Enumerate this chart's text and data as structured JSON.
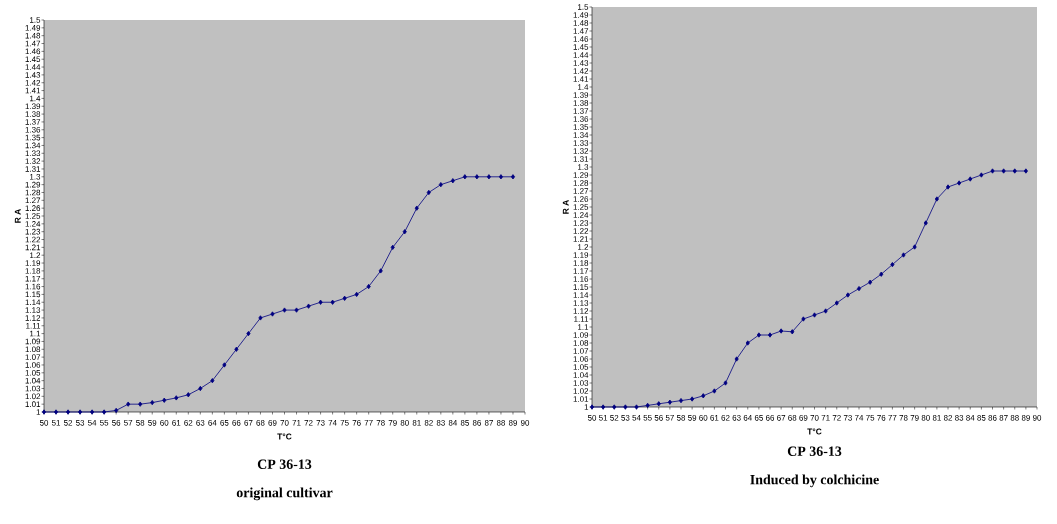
{
  "chart_data": [
    {
      "type": "line",
      "title": "CP 36-13",
      "subtitle": "original cultivar",
      "xlabel": "T°C",
      "ylabel": "R A",
      "marker": "diamond",
      "line_style": "solid",
      "x": [
        50,
        51,
        52,
        53,
        54,
        55,
        56,
        57,
        58,
        59,
        60,
        61,
        62,
        63,
        64,
        65,
        66,
        67,
        68,
        69,
        70,
        71,
        72,
        73,
        74,
        75,
        76,
        77,
        78,
        79,
        80,
        81,
        82,
        83,
        84,
        85,
        86,
        87,
        88,
        89
      ],
      "series": [
        {
          "color": "#000080",
          "values": [
            1.0,
            1.0,
            1.0,
            1.0,
            1.0,
            1.0,
            1.002,
            1.01,
            1.01,
            1.012,
            1.015,
            1.018,
            1.022,
            1.03,
            1.04,
            1.06,
            1.08,
            1.1,
            1.12,
            1.125,
            1.13,
            1.13,
            1.135,
            1.14,
            1.14,
            1.145,
            1.15,
            1.16,
            1.18,
            1.21,
            1.23,
            1.26,
            1.28,
            1.29,
            1.295,
            1.3,
            1.3,
            1.3,
            1.3,
            1.3
          ]
        }
      ],
      "xlim": [
        50,
        90
      ],
      "xticks": [
        50,
        51,
        52,
        53,
        54,
        55,
        56,
        57,
        58,
        59,
        60,
        61,
        62,
        63,
        64,
        65,
        66,
        67,
        68,
        69,
        70,
        71,
        72,
        73,
        74,
        75,
        76,
        77,
        78,
        79,
        80,
        81,
        82,
        83,
        84,
        85,
        86,
        87,
        88,
        89,
        90
      ],
      "ylim": [
        1,
        1.5
      ],
      "yticks": [
        1,
        1.01,
        1.02,
        1.03,
        1.04,
        1.05,
        1.06,
        1.07,
        1.08,
        1.09,
        1.1,
        1.11,
        1.12,
        1.13,
        1.14,
        1.15,
        1.16,
        1.17,
        1.18,
        1.19,
        1.2,
        1.21,
        1.22,
        1.23,
        1.24,
        1.25,
        1.26,
        1.27,
        1.28,
        1.29,
        1.3,
        1.31,
        1.32,
        1.33,
        1.34,
        1.35,
        1.36,
        1.37,
        1.38,
        1.39,
        1.4,
        1.41,
        1.42,
        1.43,
        1.44,
        1.45,
        1.46,
        1.47,
        1.48,
        1.49,
        1.5
      ]
    },
    {
      "type": "line",
      "title": "CP 36-13",
      "subtitle": "Induced by colchicine",
      "xlabel": "T°C",
      "ylabel": "R A",
      "marker": "diamond",
      "line_style": "solid",
      "x": [
        50,
        51,
        52,
        53,
        54,
        55,
        56,
        57,
        58,
        59,
        60,
        61,
        62,
        63,
        64,
        65,
        66,
        67,
        68,
        69,
        70,
        71,
        72,
        73,
        74,
        75,
        76,
        77,
        78,
        79,
        80,
        81,
        82,
        83,
        84,
        85,
        86,
        87,
        88,
        89
      ],
      "series": [
        {
          "color": "#000080",
          "values": [
            1.0,
            1.0,
            1.0,
            1.0,
            1.0,
            1.002,
            1.004,
            1.006,
            1.008,
            1.01,
            1.014,
            1.02,
            1.03,
            1.06,
            1.08,
            1.09,
            1.09,
            1.095,
            1.094,
            1.11,
            1.115,
            1.12,
            1.13,
            1.14,
            1.148,
            1.156,
            1.166,
            1.178,
            1.19,
            1.2,
            1.23,
            1.26,
            1.275,
            1.28,
            1.285,
            1.29,
            1.295,
            1.295,
            1.295,
            1.295
          ]
        }
      ],
      "xlim": [
        50,
        90
      ],
      "xticks": [
        50,
        51,
        52,
        53,
        54,
        55,
        56,
        57,
        58,
        59,
        60,
        61,
        62,
        63,
        64,
        65,
        66,
        67,
        68,
        69,
        70,
        71,
        72,
        73,
        74,
        75,
        76,
        77,
        78,
        79,
        80,
        81,
        82,
        83,
        84,
        85,
        86,
        87,
        88,
        89,
        90
      ],
      "ylim": [
        1,
        1.5
      ],
      "yticks": [
        1,
        1.01,
        1.02,
        1.03,
        1.04,
        1.05,
        1.06,
        1.07,
        1.08,
        1.09,
        1.1,
        1.11,
        1.12,
        1.13,
        1.14,
        1.15,
        1.16,
        1.17,
        1.18,
        1.19,
        1.2,
        1.21,
        1.22,
        1.23,
        1.24,
        1.25,
        1.26,
        1.27,
        1.28,
        1.29,
        1.3,
        1.31,
        1.32,
        1.33,
        1.34,
        1.35,
        1.36,
        1.37,
        1.38,
        1.39,
        1.4,
        1.41,
        1.42,
        1.43,
        1.44,
        1.45,
        1.46,
        1.47,
        1.48,
        1.49,
        1.5
      ]
    }
  ]
}
